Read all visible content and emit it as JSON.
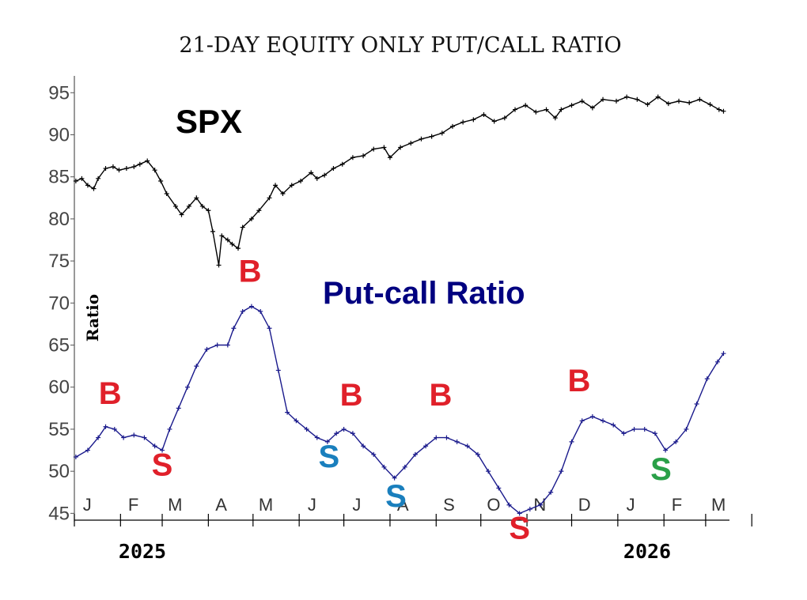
{
  "chart_data": {
    "type": "line",
    "title": "21-DAY EQUITY ONLY PUT/CALL RATIO",
    "ylabel": "Ratio",
    "ylim": [
      44,
      97
    ],
    "y_ticks": [
      45,
      50,
      55,
      60,
      65,
      70,
      75,
      80,
      85,
      90,
      95
    ],
    "x_month_labels": [
      "J",
      "F",
      "M",
      "A",
      "M",
      "J",
      "J",
      "A",
      "S",
      "O",
      "N",
      "D",
      "J",
      "F",
      "M"
    ],
    "year_labels": [
      "2025",
      "2026"
    ],
    "series": [
      {
        "name": "SPX",
        "color": "#000000",
        "marker": "plus",
        "points": [
          [
            "2025-01-02",
            84.5
          ],
          [
            "2025-01-06",
            84.8
          ],
          [
            "2025-01-10",
            84.0
          ],
          [
            "2025-01-14",
            83.6
          ],
          [
            "2025-01-17",
            84.8
          ],
          [
            "2025-01-22",
            86.0
          ],
          [
            "2025-01-27",
            86.2
          ],
          [
            "2025-01-31",
            85.8
          ],
          [
            "2025-02-05",
            86.0
          ],
          [
            "2025-02-10",
            86.2
          ],
          [
            "2025-02-14",
            86.5
          ],
          [
            "2025-02-19",
            86.9
          ],
          [
            "2025-02-24",
            85.8
          ],
          [
            "2025-02-28",
            84.5
          ],
          [
            "2025-03-04",
            83.0
          ],
          [
            "2025-03-10",
            81.5
          ],
          [
            "2025-03-14",
            80.5
          ],
          [
            "2025-03-19",
            81.5
          ],
          [
            "2025-03-24",
            82.5
          ],
          [
            "2025-03-28",
            81.5
          ],
          [
            "2025-04-01",
            81.0
          ],
          [
            "2025-04-04",
            78.5
          ],
          [
            "2025-04-08",
            74.5
          ],
          [
            "2025-04-10",
            78.0
          ],
          [
            "2025-04-14",
            77.5
          ],
          [
            "2025-04-17",
            77.0
          ],
          [
            "2025-04-21",
            76.5
          ],
          [
            "2025-04-24",
            79.0
          ],
          [
            "2025-04-30",
            80.0
          ],
          [
            "2025-05-05",
            81.0
          ],
          [
            "2025-05-12",
            82.5
          ],
          [
            "2025-05-16",
            84.0
          ],
          [
            "2025-05-21",
            83.0
          ],
          [
            "2025-05-27",
            84.0
          ],
          [
            "2025-06-02",
            84.5
          ],
          [
            "2025-06-09",
            85.5
          ],
          [
            "2025-06-13",
            84.8
          ],
          [
            "2025-06-18",
            85.2
          ],
          [
            "2025-06-24",
            86.0
          ],
          [
            "2025-06-30",
            86.5
          ],
          [
            "2025-07-07",
            87.3
          ],
          [
            "2025-07-14",
            87.5
          ],
          [
            "2025-07-21",
            88.3
          ],
          [
            "2025-07-28",
            88.5
          ],
          [
            "2025-08-01",
            87.3
          ],
          [
            "2025-08-08",
            88.5
          ],
          [
            "2025-08-15",
            89.0
          ],
          [
            "2025-08-22",
            89.5
          ],
          [
            "2025-08-29",
            89.8
          ],
          [
            "2025-09-05",
            90.2
          ],
          [
            "2025-09-12",
            91.0
          ],
          [
            "2025-09-19",
            91.5
          ],
          [
            "2025-09-26",
            91.8
          ],
          [
            "2025-10-03",
            92.4
          ],
          [
            "2025-10-10",
            91.6
          ],
          [
            "2025-10-17",
            92.0
          ],
          [
            "2025-10-24",
            93.0
          ],
          [
            "2025-10-31",
            93.5
          ],
          [
            "2025-11-07",
            92.7
          ],
          [
            "2025-11-14",
            93.0
          ],
          [
            "2025-11-20",
            92.0
          ],
          [
            "2025-11-24",
            93.0
          ],
          [
            "2025-12-01",
            93.5
          ],
          [
            "2025-12-08",
            94.0
          ],
          [
            "2025-12-15",
            93.2
          ],
          [
            "2025-12-22",
            94.2
          ],
          [
            "2025-12-31",
            94.0
          ],
          [
            "2026-01-07",
            94.5
          ],
          [
            "2026-01-14",
            94.2
          ],
          [
            "2026-01-21",
            93.6
          ],
          [
            "2026-01-28",
            94.5
          ],
          [
            "2026-02-04",
            93.7
          ],
          [
            "2026-02-11",
            94.0
          ],
          [
            "2026-02-18",
            93.8
          ],
          [
            "2026-02-25",
            94.2
          ],
          [
            "2026-03-04",
            93.6
          ],
          [
            "2026-03-10",
            93.0
          ],
          [
            "2026-03-13",
            92.8
          ]
        ]
      },
      {
        "name": "Put-call Ratio",
        "color": "#1a1a8c",
        "marker": "plus",
        "points": [
          [
            "2025-01-02",
            51.7
          ],
          [
            "2025-01-10",
            52.5
          ],
          [
            "2025-01-17",
            54.0
          ],
          [
            "2025-01-22",
            55.3
          ],
          [
            "2025-01-28",
            55.0
          ],
          [
            "2025-02-03",
            54.0
          ],
          [
            "2025-02-10",
            54.3
          ],
          [
            "2025-02-17",
            54.0
          ],
          [
            "2025-02-24",
            53.0
          ],
          [
            "2025-03-01",
            52.5
          ],
          [
            "2025-03-06",
            55.0
          ],
          [
            "2025-03-12",
            57.5
          ],
          [
            "2025-03-18",
            60.0
          ],
          [
            "2025-03-24",
            62.5
          ],
          [
            "2025-03-31",
            64.5
          ],
          [
            "2025-04-07",
            65.0
          ],
          [
            "2025-04-14",
            65.0
          ],
          [
            "2025-04-18",
            67.0
          ],
          [
            "2025-04-24",
            69.0
          ],
          [
            "2025-04-30",
            69.6
          ],
          [
            "2025-05-06",
            69.0
          ],
          [
            "2025-05-12",
            67.0
          ],
          [
            "2025-05-18",
            62.0
          ],
          [
            "2025-05-24",
            57.0
          ],
          [
            "2025-05-30",
            56.0
          ],
          [
            "2025-06-06",
            55.0
          ],
          [
            "2025-06-13",
            54.0
          ],
          [
            "2025-06-20",
            53.5
          ],
          [
            "2025-06-26",
            54.5
          ],
          [
            "2025-07-01",
            55.0
          ],
          [
            "2025-07-07",
            54.5
          ],
          [
            "2025-07-14",
            53.0
          ],
          [
            "2025-07-21",
            52.0
          ],
          [
            "2025-07-28",
            50.5
          ],
          [
            "2025-08-04",
            49.2
          ],
          [
            "2025-08-11",
            50.5
          ],
          [
            "2025-08-18",
            52.0
          ],
          [
            "2025-08-25",
            53.0
          ],
          [
            "2025-09-01",
            54.0
          ],
          [
            "2025-09-08",
            54.0
          ],
          [
            "2025-09-15",
            53.5
          ],
          [
            "2025-09-22",
            53.0
          ],
          [
            "2025-09-29",
            52.0
          ],
          [
            "2025-10-06",
            50.0
          ],
          [
            "2025-10-13",
            48.0
          ],
          [
            "2025-10-20",
            46.0
          ],
          [
            "2025-10-27",
            45.0
          ],
          [
            "2025-11-03",
            45.5
          ],
          [
            "2025-11-10",
            46.0
          ],
          [
            "2025-11-17",
            47.5
          ],
          [
            "2025-11-24",
            50.0
          ],
          [
            "2025-12-01",
            53.5
          ],
          [
            "2025-12-08",
            56.0
          ],
          [
            "2025-12-15",
            56.5
          ],
          [
            "2025-12-22",
            56.0
          ],
          [
            "2025-12-29",
            55.5
          ],
          [
            "2026-01-05",
            54.5
          ],
          [
            "2026-01-12",
            55.0
          ],
          [
            "2026-01-19",
            55.0
          ],
          [
            "2026-01-26",
            54.5
          ],
          [
            "2026-02-02",
            52.5
          ],
          [
            "2026-02-09",
            53.5
          ],
          [
            "2026-02-16",
            55.0
          ],
          [
            "2026-02-23",
            58.0
          ],
          [
            "2026-03-02",
            61.0
          ],
          [
            "2026-03-09",
            63.0
          ],
          [
            "2026-03-13",
            64.0
          ]
        ]
      }
    ],
    "annotations": [
      {
        "text": "SPX",
        "kind": "series-label",
        "color": "#000000"
      },
      {
        "text": "Put-call Ratio",
        "kind": "series-label",
        "color": "#000080"
      },
      {
        "text": "B",
        "date": "2025-01-25",
        "value": 58.0,
        "color": "#e0202a"
      },
      {
        "text": "S",
        "date": "2025-03-01",
        "value": 49.5,
        "color": "#e0202a"
      },
      {
        "text": "B",
        "date": "2025-04-29",
        "value": 72.5,
        "color": "#e0202a"
      },
      {
        "text": "S",
        "date": "2025-06-21",
        "value": 50.5,
        "color": "#1a7fbd"
      },
      {
        "text": "B",
        "date": "2025-07-06",
        "value": 57.8,
        "color": "#e0202a"
      },
      {
        "text": "S",
        "date": "2025-08-05",
        "value": 45.8,
        "color": "#1a7fbd"
      },
      {
        "text": "B",
        "date": "2025-09-04",
        "value": 57.8,
        "color": "#e0202a"
      },
      {
        "text": "S",
        "date": "2025-10-27",
        "value": 42.0,
        "color": "#e0202a"
      },
      {
        "text": "B",
        "date": "2025-12-06",
        "value": 59.5,
        "color": "#e0202a"
      },
      {
        "text": "S",
        "date": "2026-01-30",
        "value": 49.0,
        "color": "#2aa048"
      }
    ]
  }
}
